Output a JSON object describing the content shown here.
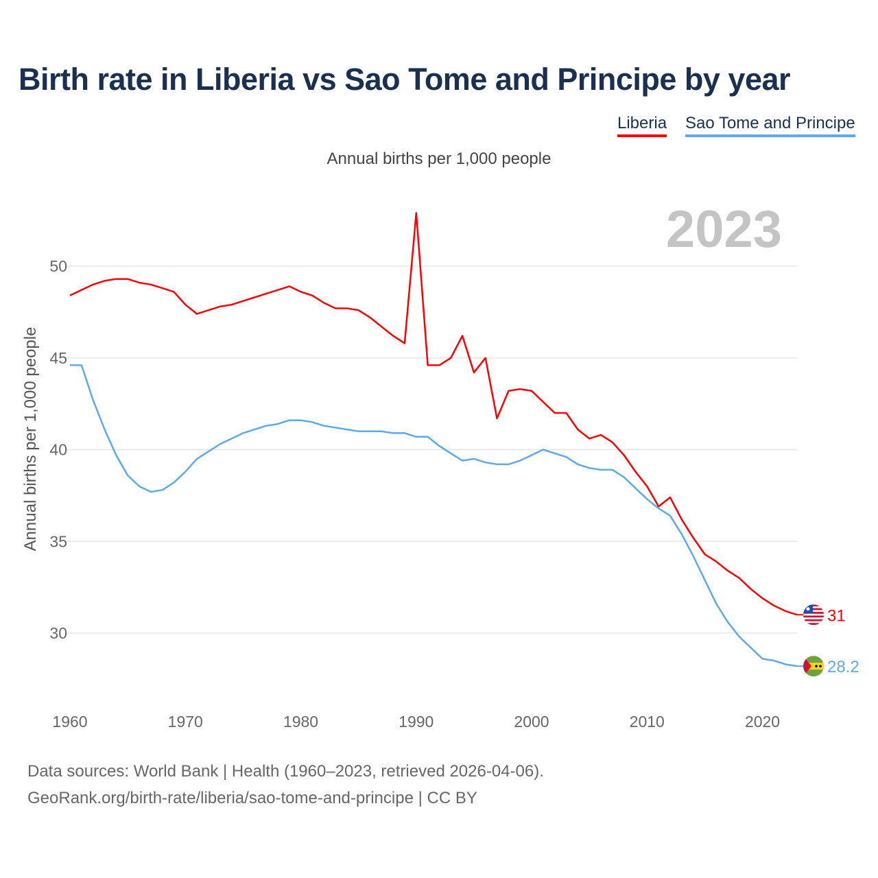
{
  "title": "Birth rate in Liberia vs Sao Tome and Principe by year",
  "subtitle": "Annual births per 1,000 people",
  "year_label": "2023",
  "footer": {
    "line1": "Data sources: World Bank | Health (1960–2023, retrieved 2026-04-06).",
    "line2": "GeoRank.org/birth-rate/liberia/sao-tome-and-principe | CC BY"
  },
  "chart_data": {
    "type": "line",
    "title": "Birth rate in Liberia vs Sao Tome and Principe by year",
    "xlabel": "",
    "ylabel": "Annual births per 1,000 people",
    "xlim": [
      1960,
      2023
    ],
    "ylim": [
      26.3,
      53.4
    ],
    "xticks": [
      1960,
      1970,
      1980,
      1990,
      2000,
      2010,
      2020
    ],
    "yticks": [
      30,
      35,
      40,
      45,
      50
    ],
    "grid": true,
    "legend": "top-right",
    "x_start": 1960,
    "series": [
      {
        "name": "Liberia",
        "color": "#ff0000",
        "end_label": "31",
        "values": [
          48.4,
          48.7,
          49.0,
          49.2,
          49.3,
          49.3,
          49.1,
          49.0,
          48.8,
          48.6,
          47.9,
          47.4,
          47.6,
          47.8,
          47.9,
          48.1,
          48.3,
          48.5,
          48.7,
          48.9,
          48.6,
          48.4,
          48.0,
          47.7,
          47.7,
          47.6,
          47.2,
          46.7,
          46.2,
          45.8,
          52.9,
          44.6,
          44.6,
          45.0,
          46.2,
          44.2,
          45.0,
          41.7,
          43.2,
          43.3,
          43.2,
          42.6,
          42.0,
          42.0,
          41.1,
          40.6,
          40.8,
          40.4,
          39.7,
          38.8,
          38.0,
          36.9,
          37.4,
          36.2,
          35.2,
          34.3,
          33.9,
          33.4,
          33.0,
          32.4,
          31.9,
          31.5,
          31.2,
          31.0
        ]
      },
      {
        "name": "Sao Tome and Principe",
        "color": "#5ea9ee",
        "end_label": "28.2",
        "values": [
          44.6,
          44.6,
          42.7,
          41.1,
          39.7,
          38.6,
          38.0,
          37.7,
          37.8,
          38.2,
          38.8,
          39.5,
          39.9,
          40.3,
          40.6,
          40.9,
          41.1,
          41.3,
          41.4,
          41.6,
          41.6,
          41.5,
          41.3,
          41.2,
          41.1,
          41.0,
          41.0,
          41.0,
          40.9,
          40.9,
          40.7,
          40.7,
          40.2,
          39.8,
          39.4,
          39.5,
          39.3,
          39.2,
          39.2,
          39.4,
          39.7,
          40.0,
          39.8,
          39.6,
          39.2,
          39.0,
          38.9,
          38.9,
          38.5,
          37.9,
          37.3,
          36.8,
          36.4,
          35.4,
          34.2,
          32.9,
          31.6,
          30.6,
          29.8,
          29.2,
          28.6,
          28.5,
          28.3,
          28.2
        ]
      }
    ]
  }
}
